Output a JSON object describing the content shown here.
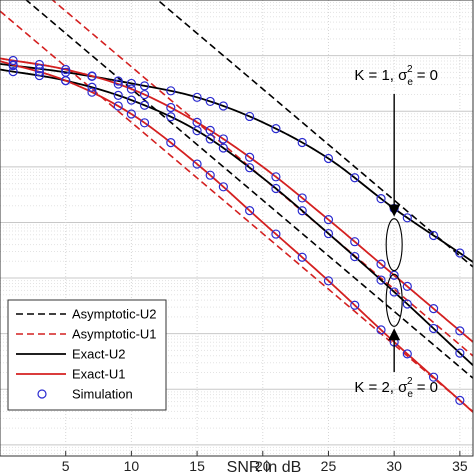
{
  "chart_data": {
    "type": "line",
    "xlabel": "SNR in dB",
    "ylabel": "",
    "xlim": [
      0,
      36
    ],
    "ylim": [
      -8.2,
      0
    ],
    "log_y": true,
    "grid": true,
    "xticks": [
      5,
      10,
      15,
      20,
      25,
      30,
      35
    ],
    "xtick_labels": [
      "5",
      "10",
      "15",
      "20",
      "25",
      "30",
      "35"
    ],
    "series": [
      {
        "name": "Asymptotic-U2",
        "style": "dashed",
        "color": "#000000",
        "x": [
          0,
          5,
          10,
          15,
          20,
          25,
          30,
          35
        ],
        "y": [
          2.4,
          1.4,
          0.4,
          -0.6,
          -1.6,
          -2.6,
          -3.6,
          -4.6
        ]
      },
      {
        "name": "Asymptotic-U2",
        "style": "dashed",
        "color": "#000000",
        "x": [
          0,
          5,
          10,
          15,
          20,
          25,
          30,
          35
        ],
        "y": [
          0.4,
          -0.6,
          -1.6,
          -2.6,
          -3.6,
          -4.6,
          -5.6,
          -6.6
        ]
      },
      {
        "name": "Asymptotic-U1",
        "style": "dashed",
        "color": "#d42020",
        "x": [
          0,
          5,
          10,
          15,
          20,
          25,
          30,
          35
        ],
        "y": [
          0.8,
          -0.2,
          -1.2,
          -2.2,
          -3.2,
          -4.2,
          -5.2,
          -6.2
        ]
      },
      {
        "name": "Asymptotic-U1",
        "style": "dashed",
        "color": "#d42020",
        "x": [
          0,
          5,
          10,
          15,
          20,
          25,
          30,
          35
        ],
        "y": [
          -0.2,
          -1.2,
          -2.2,
          -3.2,
          -4.2,
          -5.2,
          -6.2,
          -7.2
        ]
      },
      {
        "name": "Exact-U2",
        "style": "solid",
        "color": "#000000",
        "x": [
          0,
          5,
          10,
          15,
          20,
          25,
          30,
          35
        ],
        "y": [
          -1.15,
          -1.3,
          -1.5,
          -1.75,
          -2.2,
          -2.85,
          -3.75,
          -4.55
        ]
      },
      {
        "name": "Exact-U2",
        "style": "solid",
        "color": "#000000",
        "x": [
          0,
          5,
          10,
          15,
          20,
          25,
          30,
          35
        ],
        "y": [
          -1.25,
          -1.45,
          -1.8,
          -2.35,
          -3.2,
          -4.2,
          -5.25,
          -6.35
        ]
      },
      {
        "name": "Exact-U1",
        "style": "solid",
        "color": "#d42020",
        "x": [
          0,
          5,
          10,
          15,
          20,
          25,
          30,
          35
        ],
        "y": [
          -1.05,
          -1.25,
          -1.6,
          -2.2,
          -3.0,
          -3.95,
          -4.95,
          -5.95
        ]
      },
      {
        "name": "Exact-U1",
        "style": "solid",
        "color": "#d42020",
        "x": [
          0,
          5,
          10,
          15,
          20,
          25,
          30,
          35
        ],
        "y": [
          -1.1,
          -1.45,
          -2.05,
          -2.95,
          -4.0,
          -5.05,
          -6.15,
          -7.2
        ]
      }
    ],
    "simulation": {
      "name": "Simulation",
      "marker": "circle",
      "color": "#2a2ad0",
      "x": [
        1,
        3,
        5,
        7,
        9,
        10,
        11,
        13,
        15,
        16,
        17,
        19,
        21,
        23,
        25,
        27,
        29,
        30,
        31,
        33,
        35
      ]
    },
    "legend": {
      "position": "lower-left",
      "entries": [
        {
          "label": "Asymptotic-U2",
          "style": "dashed",
          "color": "#000000"
        },
        {
          "label": "Asymptotic-U1",
          "style": "dashed",
          "color": "#d42020"
        },
        {
          "label": "Exact-U2",
          "style": "solid",
          "color": "#000000"
        },
        {
          "label": "Exact-U1",
          "style": "solid",
          "color": "#d42020"
        },
        {
          "label": "Simulation",
          "style": "marker",
          "color": "#2a2ad0"
        }
      ]
    },
    "annotations": [
      {
        "prefix": "K = 1, ",
        "sym": "σ",
        "sub": "e",
        "sup": "2",
        "suffix": " = 0",
        "x": 30,
        "y": -4.4,
        "arrow": "down"
      },
      {
        "prefix": "K = 2, ",
        "sym": "σ",
        "sub": "e",
        "sup": "2",
        "suffix": " = 0",
        "x": 30,
        "y": -5.4,
        "arrow": "up"
      }
    ]
  }
}
